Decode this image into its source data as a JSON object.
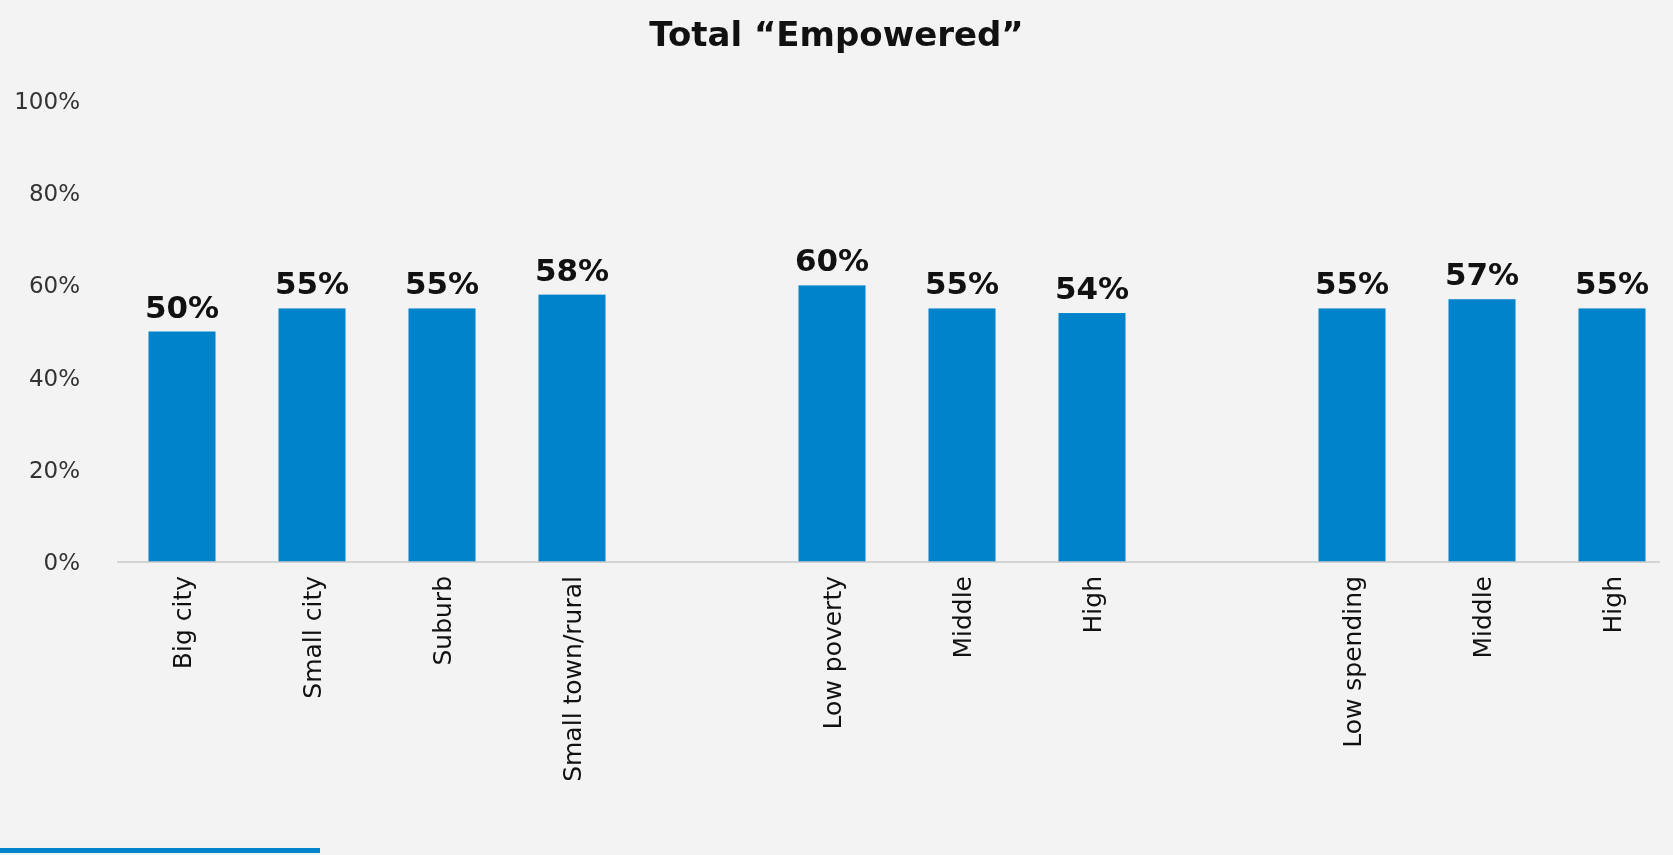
{
  "chart_data": {
    "type": "bar",
    "title": "Total “Empowered”",
    "categories": [
      "Big city",
      "Small city",
      "Suburb",
      "Small town/rural",
      null,
      "Low poverty",
      "Middle",
      "High",
      null,
      "Low spending",
      "Middle",
      "High"
    ],
    "values": [
      50,
      55,
      55,
      58,
      null,
      60,
      55,
      54,
      null,
      55,
      57,
      55
    ],
    "value_labels": [
      "50%",
      "55%",
      "55%",
      "58%",
      null,
      "60%",
      "55%",
      "54%",
      null,
      "55%",
      "57%",
      "55%"
    ],
    "color": "#0083cb",
    "ylim": [
      0,
      100
    ],
    "yticks": [
      {
        "value": 0,
        "label": "0%"
      },
      {
        "value": 20,
        "label": "20%"
      },
      {
        "value": 40,
        "label": "40%"
      },
      {
        "value": 60,
        "label": "60%"
      },
      {
        "value": 80,
        "label": "80%"
      },
      {
        "value": 100,
        "label": "100%"
      }
    ],
    "grid": false
  }
}
